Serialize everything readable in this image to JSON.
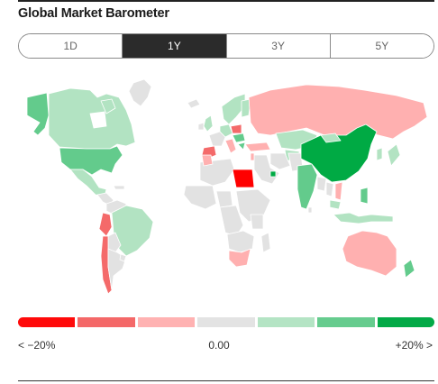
{
  "title": "Global Market Barometer",
  "tabs": [
    {
      "label": "1D",
      "active": false
    },
    {
      "label": "1Y",
      "active": true
    },
    {
      "label": "3Y",
      "active": false
    },
    {
      "label": "5Y",
      "active": false
    }
  ],
  "colors": {
    "neutral": "#e2e2e2",
    "green_light": "#b2e3c2",
    "green_mid": "#63cb8c",
    "green_dark": "#00aa44",
    "red_light": "#ffb0b0",
    "red_mid": "#f46a6a",
    "red_dark": "#ff0000"
  },
  "scale": {
    "colors": [
      "#ff0a0a",
      "#f46868",
      "#ffb2b2",
      "#e3e3e3",
      "#b4e4c4",
      "#66cc8e",
      "#03aa47"
    ],
    "left_label": "< −20%",
    "mid_label": "0.00",
    "right_label": "+20% >"
  }
}
